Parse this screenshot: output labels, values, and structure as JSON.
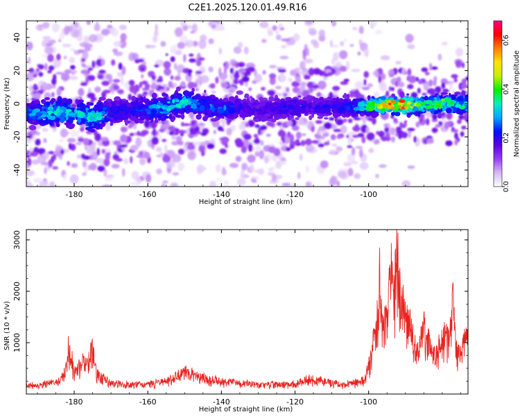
{
  "title": "C2E1.2025.120.01.49.R16",
  "colors": {
    "snr_line": "#e8231f",
    "spectrum_purple": "#b070f0",
    "frame": "#000000",
    "background": "#ffffff"
  },
  "chart_data": [
    {
      "type": "heatmap",
      "title": "C2E1.2025.120.01.49.R16",
      "xlabel": "Height of straight line (km)",
      "ylabel": "Frequency (Hz)",
      "xlim": [
        -193,
        -73
      ],
      "ylim": [
        -50,
        50
      ],
      "x_ticks": [
        -180,
        -160,
        -140,
        -120,
        -100
      ],
      "y_ticks": [
        -40,
        -20,
        0,
        20,
        40
      ],
      "colorbar": {
        "label": "Normalized spectral amplitude",
        "range": [
          0.0,
          0.68
        ],
        "ticks": [
          "0.0",
          "0.2",
          "0.4",
          "0.6"
        ],
        "tick_values": [
          0.0,
          0.2,
          0.4,
          0.6
        ],
        "colormap": [
          "#ffffff",
          "#d8b8f8",
          "#9a40f0",
          "#5a00e8",
          "#0010ff",
          "#00a8ff",
          "#00f0c0",
          "#00f000",
          "#c8f000",
          "#ffe000",
          "#ff8000",
          "#ff0000",
          "#ff0080"
        ]
      },
      "band_profile": {
        "note": "Dominant spectral band centred near 0 Hz across all heights; strongest amplitude near -100 to -80 km",
        "x": [
          -190,
          -185,
          -180,
          -175,
          -170,
          -165,
          -160,
          -155,
          -150,
          -145,
          -140,
          -135,
          -130,
          -125,
          -120,
          -115,
          -110,
          -105,
          -100,
          -95,
          -90,
          -85,
          -80,
          -75
        ],
        "center_hz": [
          -6,
          -5,
          -6,
          -8,
          -5,
          -4,
          -4,
          -2,
          1,
          -1,
          -3,
          -2,
          -4,
          -3,
          -2,
          -2,
          -2,
          -2,
          -1,
          -1,
          -1,
          -1,
          0,
          0
        ],
        "half_width_hz": [
          10,
          12,
          11,
          12,
          10,
          10,
          10,
          11,
          10,
          10,
          9,
          9,
          9,
          9,
          8,
          8,
          8,
          8,
          7,
          7,
          7,
          8,
          8,
          8
        ],
        "peak_amplitude": [
          0.3,
          0.38,
          0.34,
          0.4,
          0.26,
          0.24,
          0.3,
          0.34,
          0.36,
          0.28,
          0.3,
          0.22,
          0.2,
          0.22,
          0.24,
          0.22,
          0.24,
          0.26,
          0.4,
          0.64,
          0.6,
          0.42,
          0.46,
          0.38
        ]
      }
    },
    {
      "type": "line",
      "xlabel": "Height of straight line (km)",
      "ylabel": "SNR (10 * v/v)",
      "xlim": [
        -193,
        -73
      ],
      "ylim": [
        0,
        3200
      ],
      "x_ticks": [
        -180,
        -160,
        -140,
        -120,
        -100
      ],
      "y_ticks": [
        1000,
        2000,
        3000
      ],
      "series": [
        {
          "x": [
            -193,
            -190,
            -188,
            -186,
            -184,
            -182,
            -181.5,
            -180,
            -178,
            -176,
            -175,
            -174,
            -172,
            -170,
            -168,
            -165,
            -162,
            -160,
            -158,
            -156,
            -154,
            -152,
            -150,
            -148,
            -146,
            -144,
            -142,
            -140,
            -138,
            -136,
            -134,
            -132,
            -130,
            -128,
            -126,
            -124,
            -122,
            -120,
            -118,
            -116,
            -114,
            -112,
            -110,
            -108,
            -106,
            -104,
            -102,
            -101,
            -100,
            -99,
            -98,
            -97,
            -96,
            -95,
            -94,
            -93.5,
            -93,
            -92.5,
            -92,
            -91,
            -90,
            -89,
            -88,
            -87,
            -86,
            -85,
            -84,
            -83,
            -82,
            -81,
            -80,
            -79,
            -78,
            -77,
            -76,
            -75,
            -74,
            -73
          ],
          "y": [
            200,
            200,
            240,
            260,
            300,
            600,
            1150,
            500,
            700,
            820,
            1100,
            500,
            400,
            260,
            260,
            230,
            260,
            240,
            260,
            300,
            340,
            420,
            520,
            460,
            400,
            370,
            340,
            300,
            300,
            270,
            250,
            240,
            230,
            210,
            240,
            220,
            230,
            250,
            320,
            350,
            330,
            300,
            270,
            240,
            230,
            250,
            330,
            360,
            650,
            1150,
            1500,
            2600,
            1700,
            2000,
            2800,
            3200,
            2600,
            3000,
            2700,
            2100,
            1850,
            1600,
            1200,
            1000,
            1150,
            1550,
            1300,
            1200,
            900,
            1000,
            1250,
            1400,
            1200,
            2300,
            1000,
            900,
            1250,
            1500
          ]
        }
      ]
    }
  ]
}
